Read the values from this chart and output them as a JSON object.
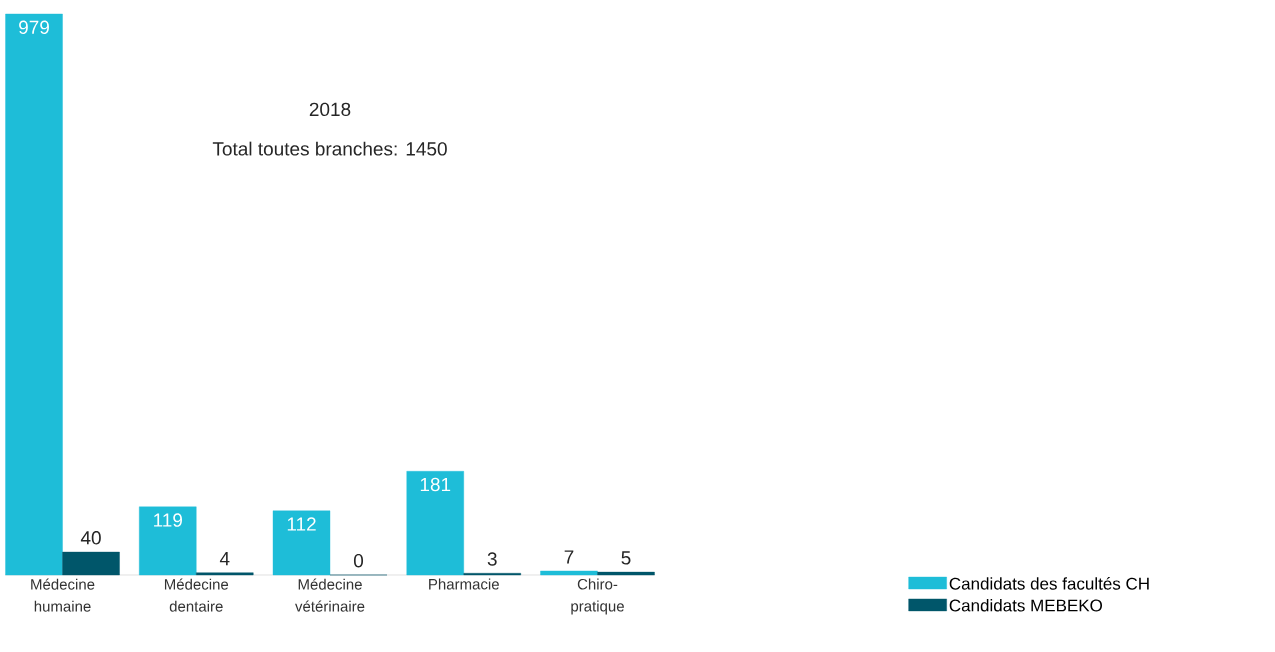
{
  "chart_data": {
    "type": "bar",
    "title": "2018",
    "subtitle": "Total toutes branches: 1450",
    "categories": [
      "Médecine humaine",
      "Médecine dentaire",
      "Médecine vétérinaire",
      "Pharmacie",
      "Chiro-pratique"
    ],
    "series": [
      {
        "name": "Candidats des facultés CH",
        "color": "#1ebdd8",
        "values": [
          979,
          119,
          112,
          181,
          7
        ]
      },
      {
        "name": "Candidats MEBEKO",
        "color": "#00566a",
        "values": [
          40,
          4,
          0,
          3,
          5
        ]
      }
    ],
    "data_labels": true,
    "legend": "right",
    "grid": false
  }
}
